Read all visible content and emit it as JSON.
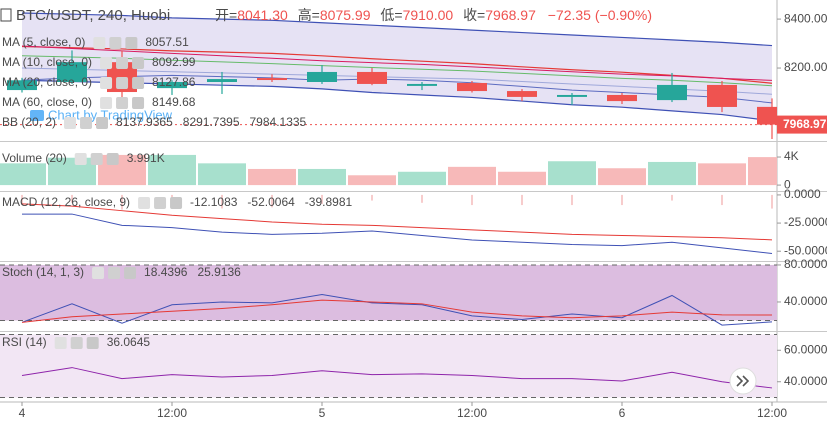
{
  "header": {
    "symbol": "BTC/USDT, 240, Huobi",
    "ohlc": [
      {
        "label": "开=",
        "value": "8041.30"
      },
      {
        "label": "高=",
        "value": "8075.99"
      },
      {
        "label": "低=",
        "value": "7910.00"
      },
      {
        "label": "收=",
        "value": "7968.97"
      }
    ],
    "change": "−72.35 (−0.90%)",
    "color": "#ef5350"
  },
  "watermark": "Chart by TradingView",
  "chart_data": [
    {
      "type": "candlestick",
      "categories": [
        "4",
        null,
        null,
        "12:00",
        null,
        null,
        "5",
        null,
        null,
        "12:00",
        null,
        null,
        "6",
        null,
        null,
        "12:00"
      ],
      "open": [
        8110,
        8143,
        8224,
        8118,
        8143,
        8159,
        8143,
        8184,
        8127,
        8139,
        8106,
        8082,
        8090,
        8069,
        8131,
        8041.3
      ],
      "high": [
        8160,
        8272,
        8272,
        8150,
        8184,
        8175,
        8212,
        8200,
        8143,
        8147,
        8114,
        8098,
        8098,
        8180,
        8147,
        8075.99
      ],
      "low": [
        8100,
        8135,
        8049,
        8090,
        8094,
        8143,
        8135,
        8130,
        8110,
        8100,
        8065,
        8049,
        8053,
        8061,
        8020,
        7910
      ],
      "close": [
        8150,
        8224,
        8102,
        8143,
        8155,
        8151,
        8184,
        8135,
        8135,
        8106,
        8082,
        8090,
        8065,
        8131,
        8041,
        7968.97
      ],
      "up_color": "#26a69a",
      "down_color": "#ef5350",
      "ylim": [
        7906,
        8478
      ],
      "yticks": [
        {
          "value": 8400,
          "label": "8400.00"
        },
        {
          "value": 8200,
          "label": "8200.00"
        }
      ],
      "series": [
        {
          "name": "MA (5, close, 0)",
          "color": "#5c6bc0",
          "values": [
            8150,
            8160,
            8165,
            8170,
            8165,
            8160,
            8150,
            8155,
            8150,
            8140,
            8125,
            8110,
            8100,
            8090,
            8080,
            8057.51
          ]
        },
        {
          "name": "MA (10, close, 0)",
          "color": "#9fa8da",
          "values": [
            8200,
            8195,
            8190,
            8185,
            8180,
            8175,
            8170,
            8165,
            8160,
            8155,
            8145,
            8135,
            8125,
            8115,
            8105,
            8092.99
          ]
        },
        {
          "name": "MA (20, close, 0)",
          "color": "#66bb6a",
          "values": [
            8250,
            8245,
            8240,
            8232,
            8225,
            8218,
            8210,
            8202,
            8195,
            8188,
            8178,
            8168,
            8158,
            8150,
            8140,
            8127.86
          ]
        },
        {
          "name": "MA (60, close, 0)",
          "color": "#d81b60",
          "values": [
            8290,
            8280,
            8270,
            8260,
            8250,
            8240,
            8230,
            8222,
            8215,
            8205,
            8195,
            8185,
            8175,
            8168,
            8158,
            8149.68
          ]
        }
      ],
      "bands": {
        "name": "BB (20, 2)",
        "fill": "#e6e2f4",
        "series": [
          {
            "color": "#e53935",
            "values": [
              8288,
              8283,
              8278,
              8270,
              8265,
              8260,
              8250,
              8238,
              8228,
              8218,
              8205,
              8193,
              8183,
              8170,
              8158,
              8137.9365
            ]
          },
          {
            "color": "#3f51b5",
            "values": [
              8425,
              8420,
              8415,
              8405,
              8400,
              8395,
              8385,
              8375,
              8365,
              8355,
              8345,
              8335,
              8325,
              8315,
              8305,
              8291.7395
            ]
          },
          {
            "color": "#3f51b5",
            "values": [
              8150,
              8145,
              8140,
              8135,
              8130,
              8125,
              8115,
              8100,
              8090,
              8080,
              8065,
              8050,
              8040,
              8025,
              8010,
              7984.1335
            ]
          }
        ]
      }
    },
    {
      "type": "bar",
      "name": "Volume (20)",
      "values": [
        3.1,
        3.9,
        4.3,
        4.3,
        3.1,
        2.3,
        2.3,
        1.4,
        1.9,
        2.6,
        1.9,
        3.4,
        2.4,
        3.3,
        3.1,
        3.991
      ],
      "current_label": "3.991K",
      "label_color": "#ef5350",
      "up_color": "#a7e0cd",
      "down_color": "#f7b9b9",
      "ylim": [
        -0.7,
        6
      ],
      "yticks": [
        {
          "value": 4,
          "label": "4K"
        },
        0
      ]
    },
    {
      "type": "line",
      "name": "MACD (12, 26, close, 9)",
      "histogram": {
        "color": "#ef9a9a",
        "values": [
          -9,
          -7,
          -13,
          -11,
          -12,
          -11,
          -8,
          -5,
          -7,
          -9,
          -9,
          -9,
          -9,
          -5,
          -9,
          -12.1083
        ]
      },
      "series": [
        {
          "color": "#3f51b5",
          "values": [
            -17,
            -17,
            -27,
            -29,
            -33,
            -35,
            -34,
            -32,
            -36,
            -40,
            -42,
            -44,
            -45,
            -42,
            -47,
            -52.0064
          ]
        },
        {
          "color": "#e53935",
          "values": [
            -8,
            -10,
            -14,
            -18,
            -21,
            -24,
            -26,
            -27,
            -29,
            -31,
            -33,
            -35,
            -36,
            -37,
            -38,
            -39.8981
          ]
        }
      ],
      "ylim": [
        -57.8,
        2.6
      ],
      "yticks": [
        {
          "value": 0,
          "label": "0.0000"
        },
        {
          "value": -25,
          "label": "-25.0000"
        },
        {
          "value": -50,
          "label": "-50.0000"
        }
      ]
    },
    {
      "type": "line",
      "name": "Stoch (14, 1, 3)",
      "series": [
        {
          "color": "#3f51b5",
          "values": [
            18,
            38,
            17,
            37,
            40,
            39,
            48,
            39,
            37,
            25,
            21,
            27,
            23,
            47,
            15,
            18.4396
          ]
        },
        {
          "color": "#e53935",
          "values": [
            18,
            24,
            27,
            30,
            33,
            37,
            42,
            40,
            38,
            29,
            25,
            23,
            25,
            29,
            26,
            25.9136
          ]
        }
      ],
      "bands": {
        "lower": 20,
        "upper": 80,
        "fill": "#dcbde0"
      },
      "ylim": [
        9.7,
        83.2
      ],
      "yticks": [
        {
          "value": 80,
          "label": "80.0000"
        },
        {
          "value": 40,
          "label": "40.0000"
        }
      ]
    },
    {
      "type": "line",
      "name": "RSI (14)",
      "series": [
        {
          "color": "#8e24aa",
          "values": [
            44,
            49,
            42,
            44.5,
            43,
            44,
            47,
            44.5,
            45,
            44,
            42,
            42,
            40.5,
            46,
            40,
            36.0645
          ]
        }
      ],
      "bands": {
        "lower": 30,
        "upper": 70,
        "fill": "#f2e6f4"
      },
      "ylim": [
        28.4,
        71.6
      ],
      "yticks": [
        {
          "value": 60,
          "label": "60.0000"
        },
        {
          "value": 40,
          "label": "40.0000"
        }
      ]
    }
  ]
}
